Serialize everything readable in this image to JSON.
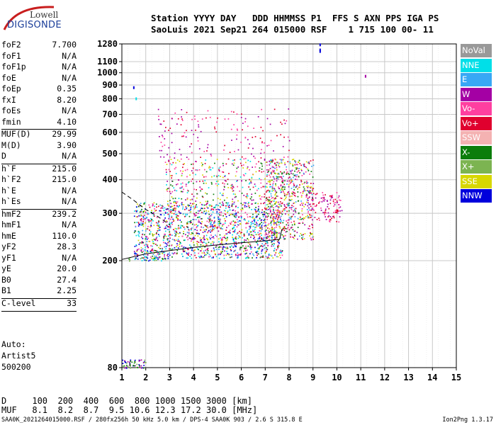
{
  "logo": {
    "line1": "Lowell",
    "line2": "DIGISONDE"
  },
  "header": {
    "line1": "Station YYYY DAY   DDD HHMMSS P1  FFS S AXN PPS IGA PS",
    "line2": "SaoLuis 2021 Sep21 264 015000 RSF    1 715 100 00- 11"
  },
  "params": [
    {
      "label": "foF2",
      "value": "7.700"
    },
    {
      "label": "foF1",
      "value": "N/A"
    },
    {
      "label": "foF1p",
      "value": "N/A"
    },
    {
      "label": "foE",
      "value": "N/A"
    },
    {
      "label": "foEp",
      "value": "0.35"
    },
    {
      "label": "fxI",
      "value": "8.20"
    },
    {
      "label": "foEs",
      "value": "N/A"
    },
    {
      "label": "fmin",
      "value": "4.10"
    },
    {
      "label": "MUF(D)",
      "value": "29.99"
    },
    {
      "label": "M(D)",
      "value": "3.90"
    },
    {
      "label": "D",
      "value": "N/A"
    },
    {
      "label": "h`F",
      "value": "215.0"
    },
    {
      "label": "h`F2",
      "value": "215.0"
    },
    {
      "label": "h`E",
      "value": "N/A"
    },
    {
      "label": "h`Es",
      "value": "N/A"
    },
    {
      "label": "hmF2",
      "value": "239.2"
    },
    {
      "label": "hmF1",
      "value": "N/A"
    },
    {
      "label": "hmE",
      "value": "110.0"
    },
    {
      "label": "yF2",
      "value": "28.3"
    },
    {
      "label": "yF1",
      "value": "N/A"
    },
    {
      "label": "yE",
      "value": "20.0"
    },
    {
      "label": "B0",
      "value": "27.4"
    },
    {
      "label": "B1",
      "value": "2.25"
    },
    {
      "label": "C-level",
      "value": "33"
    }
  ],
  "autoscaling": {
    "line1": "Auto:",
    "line2": "Artist5",
    "line3": "500200"
  },
  "legend": [
    {
      "label": "NoVal",
      "color": "#999999"
    },
    {
      "label": "NNE",
      "color": "#00dfe8"
    },
    {
      "label": "E",
      "color": "#38a8f5"
    },
    {
      "label": "W",
      "color": "#a400a4"
    },
    {
      "label": "Vo-",
      "color": "#ff3fa0"
    },
    {
      "label": "Vo+",
      "color": "#e0002e"
    },
    {
      "label": "SSW",
      "color": "#f4b2b2"
    },
    {
      "label": "X-",
      "color": "#0b7d0b"
    },
    {
      "label": "X+",
      "color": "#7cb451"
    },
    {
      "label": "SSE",
      "color": "#d7d700"
    },
    {
      "label": "NNW",
      "color": "#0000dc"
    }
  ],
  "muf_table": {
    "d_line": "D     100  200  400  600  800 1000 1500 3000 [km]",
    "muf_line": "MUF   8.1  8.2  8.7  9.5 10.6 12.3 17.2 30.0 [MHz]"
  },
  "footer": {
    "left": "SAA0K_2021264015000.RSF / 280fx256h 50 kHz 5.0 km / DPS-4 SAA0K 903 / 2.6 S 315.8 E",
    "right": "Ion2Png 1.3.17"
  },
  "chart_data": {
    "type": "scatter",
    "title": "",
    "xlabel": "",
    "ylabel": "",
    "xlim": [
      1,
      15
    ],
    "x_ticks": [
      1,
      2,
      3,
      4,
      5,
      6,
      7,
      8,
      9,
      10,
      11,
      12,
      13,
      14,
      15
    ],
    "y_scale": "log",
    "ylim": [
      80,
      1280
    ],
    "y_ticks": [
      80,
      200,
      300,
      400,
      500,
      600,
      700,
      800,
      900,
      1000,
      1100,
      1280
    ],
    "grid": true,
    "legend_position": "right",
    "traces": [
      {
        "name": "F2 virtual height trace",
        "style": "solid",
        "x": [
          1.0,
          2.0,
          3.0,
          4.0,
          5.0,
          6.0,
          7.0,
          7.6,
          7.7
        ],
        "y": [
          202,
          212,
          218,
          224,
          229,
          233,
          237,
          240,
          262
        ]
      },
      {
        "name": "F2 extrapolation",
        "style": "dashed",
        "x": [
          1.0,
          1.5,
          2.0,
          2.5,
          3.0
        ],
        "y": [
          360,
          335,
          310,
          292,
          272
        ]
      }
    ],
    "echo_regions": [
      {
        "x": [
          1.0,
          2.0
        ],
        "y": [
          80,
          86
        ],
        "density": 0.9,
        "colors": [
          "#0000dc",
          "#a400a4",
          "#0b7d0b",
          "#7cb451"
        ]
      },
      {
        "x": [
          1.2,
          3.0
        ],
        "y": [
          200,
          206
        ],
        "density": 0.7,
        "colors": [
          "#0000dc",
          "#0b7d0b",
          "#7cb451",
          "#00dfe8"
        ]
      },
      {
        "x": [
          1.5,
          7.7
        ],
        "y": [
          205,
          330
        ],
        "density": 0.55,
        "colors": [
          "#a400a4",
          "#ff3fa0",
          "#e0002e",
          "#00dfe8",
          "#38a8f5",
          "#0b7d0b",
          "#d7d700",
          "#0000dc"
        ]
      },
      {
        "x": [
          7.0,
          9.0
        ],
        "y": [
          240,
          480
        ],
        "density": 0.45,
        "colors": [
          "#a400a4",
          "#ff3fa0",
          "#e0002e",
          "#38a8f5",
          "#0b7d0b",
          "#d7d700"
        ]
      },
      {
        "x": [
          8.8,
          10.2
        ],
        "y": [
          280,
          360
        ],
        "density": 0.35,
        "colors": [
          "#a400a4",
          "#ff3fa0",
          "#e0002e"
        ]
      },
      {
        "x": [
          2.8,
          7.8
        ],
        "y": [
          330,
          480
        ],
        "density": 0.22,
        "colors": [
          "#a400a4",
          "#ff3fa0",
          "#e0002e",
          "#00dfe8",
          "#0b7d0b",
          "#d7d700"
        ]
      },
      {
        "x": [
          2.5,
          8.0
        ],
        "y": [
          480,
          740
        ],
        "density": 0.07,
        "colors": [
          "#a400a4",
          "#ff3fa0",
          "#e0002e"
        ]
      }
    ],
    "points": [
      {
        "x": 1.5,
        "y": 880,
        "color": "#0000dc"
      },
      {
        "x": 1.6,
        "y": 800,
        "color": "#00dfe8"
      },
      {
        "x": 9.3,
        "y": 1270,
        "color": "#0000dc"
      },
      {
        "x": 9.3,
        "y": 1200,
        "color": "#0000dc"
      },
      {
        "x": 9.3,
        "y": 1215,
        "color": "#0000dc"
      },
      {
        "x": 11.2,
        "y": 970,
        "color": "#a400a4"
      }
    ]
  }
}
